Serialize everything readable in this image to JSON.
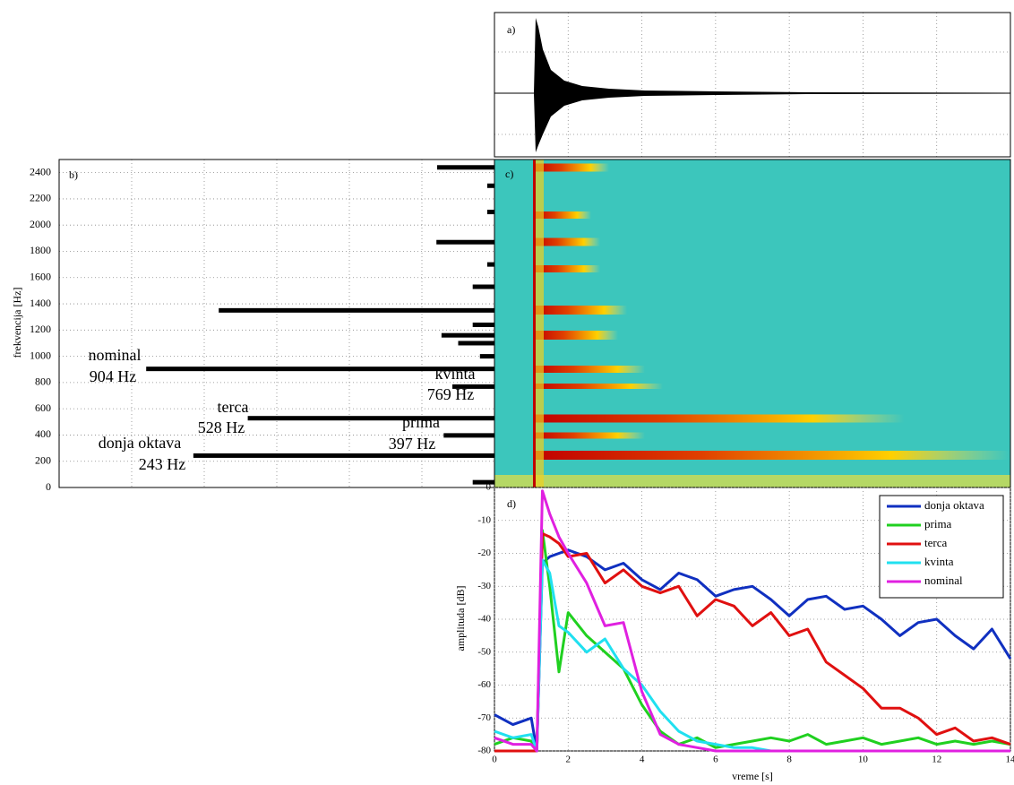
{
  "chart_data": [
    {
      "type": "waveform",
      "label": "a)"
    },
    {
      "type": "spectrum",
      "label": "b)",
      "ylabel": "frekvencija [Hz]",
      "ylim": [
        0,
        2500
      ],
      "yticks": [
        0,
        200,
        400,
        600,
        800,
        1000,
        1200,
        1400,
        1600,
        1800,
        2000,
        2200,
        2400
      ],
      "xlim": [
        6,
        0
      ],
      "color": "#000000",
      "grid": true,
      "x": [
        40,
        243,
        397,
        528,
        769,
        904,
        1000,
        1100,
        1160,
        1240,
        1350,
        1530,
        1700,
        1870,
        2100,
        2300,
        2440
      ],
      "values": [
        0.3,
        4.15,
        0.7,
        3.4,
        0.58,
        4.8,
        0.2,
        0.5,
        0.73,
        0.3,
        3.8,
        0.3,
        0.1,
        0.8,
        0.1,
        0.1,
        0.79
      ],
      "annotations": [
        {
          "text": "nominal",
          "color": "#e020e0"
        },
        {
          "text": "904 Hz",
          "color": "#e020e0"
        },
        {
          "text": "kvinta",
          "color": "#20d8e8"
        },
        {
          "text": "769 Hz",
          "color": "#20d8e8"
        },
        {
          "text": "terca",
          "color": "#c81010"
        },
        {
          "text": "528 Hz",
          "color": "#c81010"
        },
        {
          "text": "prima",
          "color": "#20c820"
        },
        {
          "text": "397 Hz",
          "color": "#20c820"
        },
        {
          "text": "donja oktava",
          "color": "#101890"
        },
        {
          "text": "243 Hz",
          "color": "#101890"
        }
      ]
    },
    {
      "type": "spectrogram",
      "label": "c)"
    },
    {
      "type": "line",
      "label": "d)",
      "xlabel": "vreme [s]",
      "ylabel": "amplituda [dB]",
      "xlim": [
        0,
        14
      ],
      "ylim": [
        -80,
        0
      ],
      "xticks": [
        0,
        2,
        4,
        6,
        8,
        10,
        12,
        14
      ],
      "yticks": [
        -80,
        -70,
        -60,
        -50,
        -40,
        -30,
        -20,
        -10,
        0
      ],
      "grid": true,
      "legend": "upper-right",
      "x": [
        0,
        0.5,
        1,
        1.15,
        1.3,
        1.5,
        1.75,
        2,
        2.5,
        3,
        3.5,
        4,
        4.5,
        5,
        5.5,
        6,
        6.5,
        7,
        7.5,
        8,
        8.5,
        9,
        9.5,
        10,
        10.5,
        11,
        11.5,
        12,
        12.5,
        13,
        13.5,
        14
      ],
      "series": [
        {
          "name": "donja oktava",
          "color": "#1030c0",
          "values": [
            -69,
            -72,
            -70,
            -80,
            -23,
            -21,
            -20,
            -19,
            -21,
            -25,
            -23,
            -28,
            -31,
            -26,
            -28,
            -33,
            -31,
            -30,
            -34,
            -39,
            -34,
            -33,
            -37,
            -36,
            -40,
            -45,
            -41,
            -40,
            -45,
            -49,
            -43,
            -52
          ]
        },
        {
          "name": "prima",
          "color": "#20d020",
          "values": [
            -78,
            -76,
            -77,
            -80,
            -13,
            -30,
            -56,
            -38,
            -45,
            -50,
            -55,
            -66,
            -74,
            -78,
            -76,
            -79,
            -78,
            -77,
            -76,
            -77,
            -75,
            -78,
            -77,
            -76,
            -78,
            -77,
            -76,
            -78,
            -77,
            -78,
            -77,
            -78
          ]
        },
        {
          "name": "terca",
          "color": "#e01010",
          "values": [
            -80,
            -80,
            -80,
            -80,
            -14,
            -15,
            -17,
            -21,
            -20,
            -29,
            -25,
            -30,
            -32,
            -30,
            -39,
            -34,
            -36,
            -42,
            -38,
            -45,
            -43,
            -53,
            -57,
            -61,
            -67,
            -67,
            -70,
            -75,
            -73,
            -77,
            -76,
            -78
          ]
        },
        {
          "name": "kvinta",
          "color": "#20e0f0",
          "values": [
            -74,
            -76,
            -75,
            -80,
            -22,
            -26,
            -42,
            -44,
            -50,
            -46,
            -55,
            -60,
            -68,
            -74,
            -77,
            -78,
            -79,
            -79,
            -80,
            -80,
            -80,
            -80,
            -80,
            -80,
            -80,
            -80,
            -80,
            -80,
            -80,
            -80,
            -80,
            -80
          ]
        },
        {
          "name": "nominal",
          "color": "#e020e0",
          "values": [
            -76,
            -78,
            -78,
            -80,
            -1,
            -8,
            -15,
            -20,
            -29,
            -42,
            -41,
            -62,
            -75,
            -78,
            -79,
            -80,
            -80,
            -80,
            -80,
            -80,
            -80,
            -80,
            -80,
            -80,
            -80,
            -80,
            -80,
            -80,
            -80,
            -80,
            -80,
            -80
          ]
        }
      ]
    }
  ]
}
